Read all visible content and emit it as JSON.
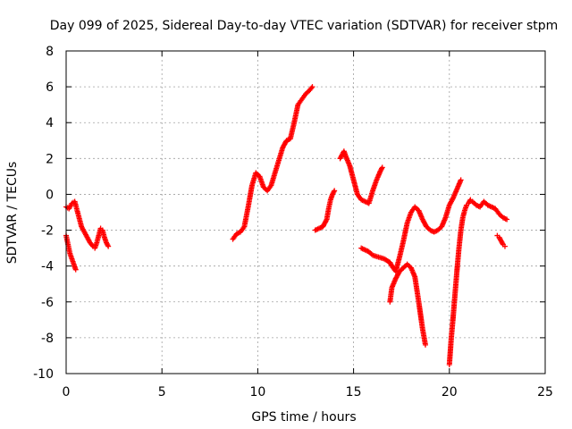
{
  "chart_data": {
    "type": "scatter",
    "title": "Day 099 of 2025, Sidereal Day-to-day VTEC variation (SDTVAR) for receiver stpm",
    "xlabel": "GPS time / hours",
    "ylabel": "SDTVAR / TECUs",
    "xlim": [
      0,
      25
    ],
    "ylim": [
      -10,
      8
    ],
    "xticks": [
      0,
      5,
      10,
      15,
      20,
      25
    ],
    "yticks": [
      -10,
      -8,
      -6,
      -4,
      -2,
      0,
      2,
      4,
      6,
      8
    ],
    "grid": true,
    "marker": "plus",
    "color": "#ff0000",
    "series": [
      {
        "x": [
          0.0,
          0.15,
          0.3,
          0.45,
          0.55,
          0.65,
          0.8,
          0.95,
          1.1,
          1.25,
          1.4,
          1.5,
          1.6,
          1.7,
          1.8,
          1.9,
          2.0,
          2.1,
          2.2
        ],
        "y": [
          -0.7,
          -0.8,
          -0.5,
          -0.4,
          -0.8,
          -1.2,
          -1.8,
          -2.1,
          -2.4,
          -2.7,
          -2.9,
          -3.0,
          -2.7,
          -2.3,
          -1.9,
          -2.0,
          -2.4,
          -2.7,
          -2.9
        ]
      },
      {
        "x": [
          0.0,
          0.1,
          0.2,
          0.3,
          0.4,
          0.5
        ],
        "y": [
          -2.3,
          -2.8,
          -3.3,
          -3.6,
          -3.9,
          -4.2
        ]
      },
      {
        "x": [
          8.7,
          8.9,
          9.1,
          9.3,
          9.5,
          9.7,
          9.9,
          10.1,
          10.3,
          10.5,
          10.7,
          10.9,
          11.1,
          11.3,
          11.5,
          11.7,
          11.9,
          12.1,
          12.3,
          12.5,
          12.7,
          12.85
        ],
        "y": [
          -2.5,
          -2.2,
          -2.1,
          -1.8,
          -0.7,
          0.5,
          1.2,
          1.0,
          0.4,
          0.2,
          0.5,
          1.2,
          1.9,
          2.6,
          3.0,
          3.1,
          4.0,
          5.0,
          5.3,
          5.6,
          5.8,
          6.0
        ]
      },
      {
        "x": [
          13.0,
          13.2,
          13.4,
          13.6,
          13.7,
          13.8,
          13.9,
          14.0
        ],
        "y": [
          -2.0,
          -1.9,
          -1.8,
          -1.4,
          -0.8,
          -0.3,
          0.0,
          0.2
        ]
      },
      {
        "x": [
          14.3,
          14.4,
          14.5,
          14.6,
          14.8,
          15.0,
          15.2,
          15.4,
          15.6,
          15.8,
          16.0,
          16.2,
          16.4,
          16.5
        ],
        "y": [
          2.0,
          2.2,
          2.4,
          2.1,
          1.6,
          0.8,
          0.0,
          -0.3,
          -0.4,
          -0.5,
          0.2,
          0.8,
          1.3,
          1.5
        ]
      },
      {
        "x": [
          15.4,
          15.6,
          15.8,
          16.0,
          16.3,
          16.6,
          16.9,
          17.0,
          17.2,
          17.4,
          17.6,
          17.8,
          18.0,
          18.2,
          18.4,
          18.6,
          18.8,
          19.0,
          19.2,
          19.4,
          19.6,
          19.8,
          20.0,
          20.2,
          20.4,
          20.6
        ],
        "y": [
          -3.0,
          -3.1,
          -3.2,
          -3.4,
          -3.5,
          -3.6,
          -3.8,
          -4.0,
          -4.3,
          -3.5,
          -2.6,
          -1.6,
          -1.0,
          -0.7,
          -0.9,
          -1.4,
          -1.8,
          -2.0,
          -2.1,
          -2.0,
          -1.8,
          -1.3,
          -0.6,
          -0.2,
          0.3,
          0.8
        ]
      },
      {
        "x": [
          16.9,
          17.0,
          17.2,
          17.4,
          17.6,
          17.8,
          18.0,
          18.2,
          18.4,
          18.6,
          18.75
        ],
        "y": [
          -6.0,
          -5.2,
          -4.7,
          -4.3,
          -4.1,
          -3.9,
          -4.1,
          -4.6,
          -6.0,
          -7.5,
          -8.4
        ]
      },
      {
        "x": [
          20.0,
          20.1,
          20.2,
          20.3,
          20.4,
          20.5,
          20.6,
          20.7,
          20.8,
          20.9,
          21.0,
          21.1,
          21.2,
          21.4,
          21.6,
          21.8,
          22.0,
          22.2,
          22.4,
          22.6,
          22.8,
          23.0
        ],
        "y": [
          -9.5,
          -8.0,
          -6.8,
          -5.5,
          -4.2,
          -3.0,
          -2.0,
          -1.3,
          -0.9,
          -0.6,
          -0.5,
          -0.3,
          -0.4,
          -0.6,
          -0.7,
          -0.4,
          -0.6,
          -0.7,
          -0.8,
          -1.1,
          -1.3,
          -1.4
        ]
      },
      {
        "x": [
          22.5,
          22.6,
          22.7,
          22.8,
          22.9
        ],
        "y": [
          -2.3,
          -2.4,
          -2.6,
          -2.8,
          -2.9
        ]
      }
    ]
  }
}
